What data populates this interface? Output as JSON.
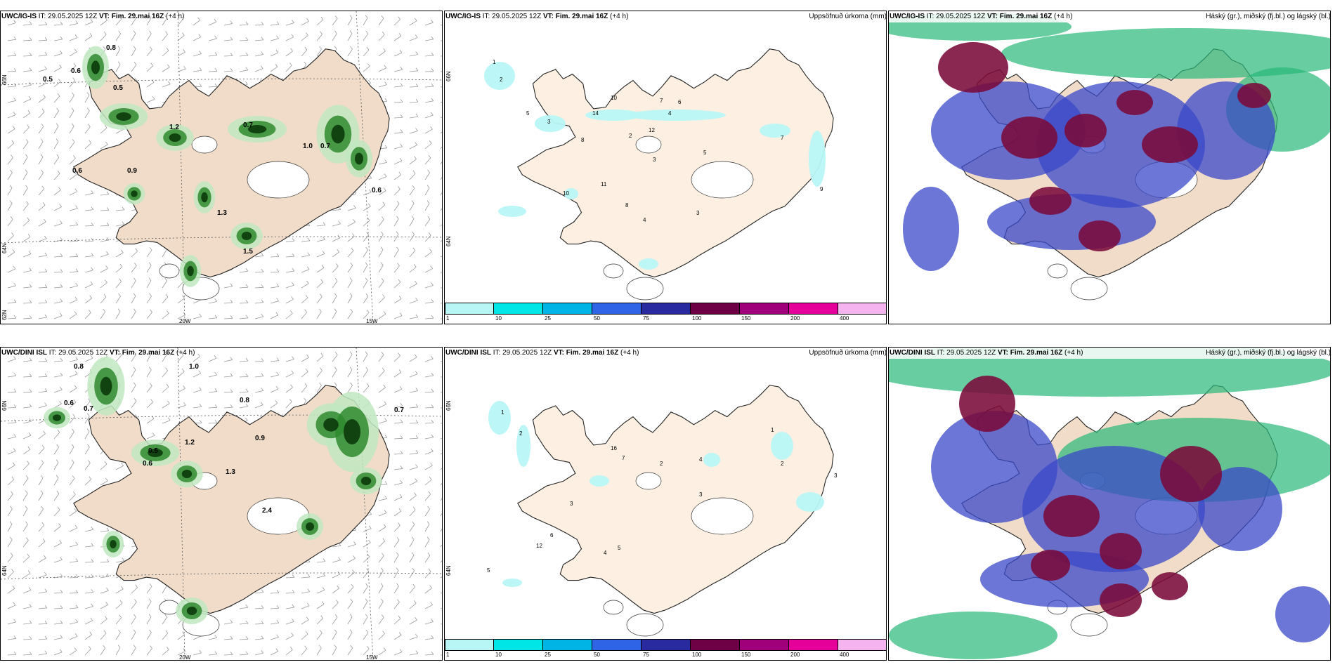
{
  "rows": [
    {
      "header": {
        "model": "UWC/IG-IS",
        "it_label": "IT:",
        "it_value": "29.05.2025 12Z",
        "vt_label": "VT:",
        "vt_value": "Fim. 29.mai 16Z",
        "lead": "(+4 h)"
      }
    },
    {
      "header": {
        "model": "UWC/DINI ISL",
        "it_label": "IT:",
        "it_value": "29.05.2025 12Z",
        "vt_label": "VT:",
        "vt_value": "Fim. 29.mai 16Z",
        "lead": "(+4 h)"
      }
    }
  ],
  "precip_title": "Uppsöfnuð úrkoma (mm)",
  "cloud_title": "Háský (gr.), miðský (fj.bl.) og lágský (bl.)",
  "axis": {
    "lon_labels": [
      "20W",
      "15W"
    ],
    "lat_labels": [
      "66N",
      "64N",
      "62N"
    ]
  },
  "colorbar": {
    "ticks": [
      "1",
      "10",
      "25",
      "50",
      "75",
      "100",
      "150",
      "200",
      "400"
    ],
    "colors": [
      "#b8f6f6",
      "#00e6e6",
      "#00b4e6",
      "#2f64e6",
      "#2a2aa0",
      "#6e0046",
      "#a0007a",
      "#e6009a",
      "#f5b4f0"
    ]
  },
  "map_colors": {
    "land": "#f0dcc8",
    "land_precip_panel": "#fdf0e2",
    "precip_light": "#b8f6f6",
    "conv_dark": "#0a3a0a",
    "conv_mid": "#2f8a2f",
    "conv_light": "#bfe8bf",
    "cloud_high": "#7a0a3a",
    "cloud_mid": "#3a48c8",
    "cloud_low": "#28b878"
  },
  "precip_labels_top": [
    "1",
    "2",
    "3",
    "5",
    "8",
    "10",
    "14",
    "12",
    "7",
    "6",
    "4",
    "2",
    "3",
    "5",
    "7",
    "9",
    "11",
    "8",
    "3",
    "10",
    "4"
  ],
  "precip_labels_bottom": [
    "1",
    "2",
    "3",
    "4",
    "5",
    "6",
    "12",
    "16",
    "7",
    "2",
    "3",
    "4",
    "1",
    "2",
    "3",
    "5"
  ],
  "conv_labels_top": [
    "0.8",
    "0.6",
    "0.5",
    "1.2",
    "1.0",
    "0.7",
    "0.9",
    "0.6",
    "0.7",
    "1.5",
    "1.3",
    "0.6",
    "0.5"
  ],
  "conv_labels_bottom": [
    "0.8",
    "0.6",
    "0.7",
    "1.0",
    "0.8",
    "0.9",
    "1.2",
    "0.5",
    "0.6",
    "0.7",
    "1.3",
    "2.4"
  ]
}
